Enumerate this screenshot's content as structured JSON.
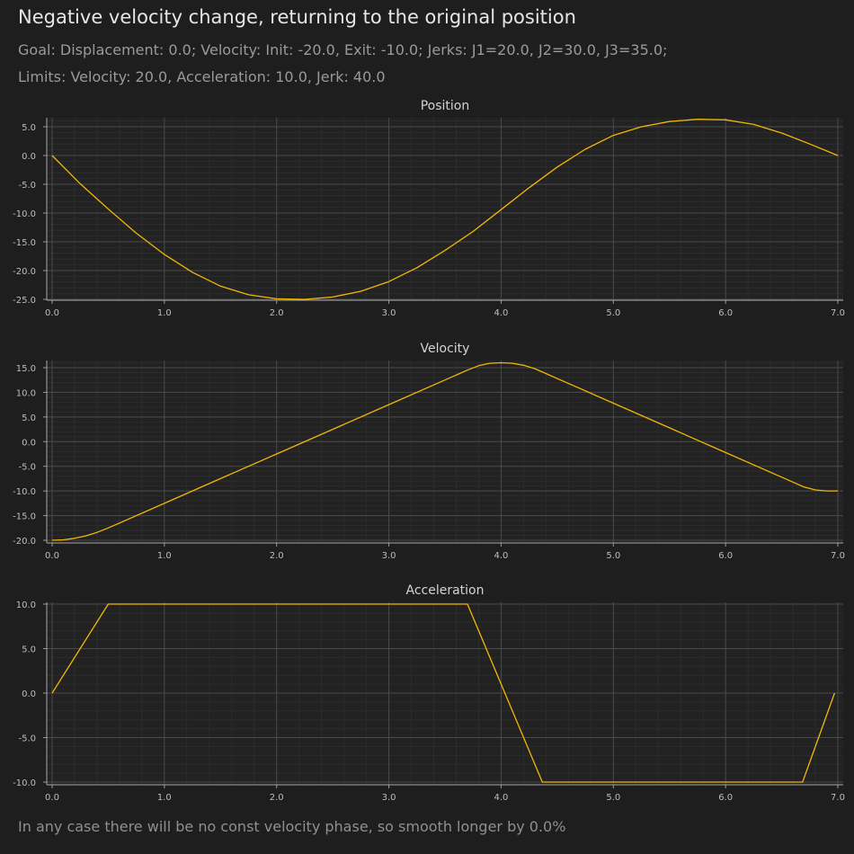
{
  "title": "Negative velocity change, returning to the original position",
  "subtitle_line1": "Goal: Displacement: 0.0; Velocity: Init: -20.0, Exit: -10.0; Jerks: J1=20.0, J2=30.0, J3=35.0;",
  "subtitle_line2": "Limits: Velocity: 20.0, Acceleration: 10.0, Jerk: 40.0",
  "footer": "In any case there will be no const velocity phase, so smooth longer by 0.0%",
  "colors": {
    "background": "#1e1e1e",
    "line": "#f2b705",
    "grid_major": "#4a4a4a",
    "grid_minor": "#2c2c2c"
  },
  "chart_data": [
    {
      "type": "line",
      "title": "Position",
      "xlim": [
        0,
        7
      ],
      "ylim": [
        -25,
        5
      ],
      "x_ticks": [
        "0.0",
        "1.0",
        "2.0",
        "3.0",
        "4.0",
        "5.0",
        "6.0",
        "7.0"
      ],
      "x_tick_values": [
        0,
        1,
        2,
        3,
        4,
        5,
        6,
        7
      ],
      "y_ticks": [
        "5.0",
        "0.0",
        "-5.0",
        "-10.0",
        "-15.0",
        "-20.0",
        "-25.0"
      ],
      "y_tick_values": [
        5,
        0,
        -5,
        -10,
        -15,
        -20,
        -25
      ],
      "x": [
        0,
        0.25,
        0.5,
        0.75,
        1.0,
        1.25,
        1.5,
        1.75,
        2.0,
        2.25,
        2.5,
        2.75,
        3.0,
        3.25,
        3.5,
        3.75,
        4.0,
        4.25,
        4.5,
        4.75,
        5.0,
        5.25,
        5.5,
        5.75,
        6.0,
        6.25,
        6.5,
        6.75,
        7.0
      ],
      "y": [
        0.0,
        -4.9,
        -9.3,
        -13.5,
        -17.2,
        -20.3,
        -22.7,
        -24.2,
        -24.9,
        -25.0,
        -24.6,
        -23.6,
        -21.9,
        -19.5,
        -16.5,
        -13.2,
        -9.4,
        -5.6,
        -2.0,
        1.1,
        3.5,
        5.0,
        5.9,
        6.3,
        6.2,
        5.4,
        3.9,
        2.0,
        0.0
      ]
    },
    {
      "type": "line",
      "title": "Velocity",
      "xlim": [
        0,
        7
      ],
      "ylim": [
        -20,
        16
      ],
      "x_ticks": [
        "0.0",
        "1.0",
        "2.0",
        "3.0",
        "4.0",
        "5.0",
        "6.0",
        "7.0"
      ],
      "x_tick_values": [
        0,
        1,
        2,
        3,
        4,
        5,
        6,
        7
      ],
      "y_ticks": [
        "15.0",
        "10.0",
        "5.0",
        "0.0",
        "-5.0",
        "-10.0",
        "-15.0",
        "-20.0"
      ],
      "y_tick_values": [
        15,
        10,
        5,
        0,
        -5,
        -10,
        -15,
        -20
      ],
      "x": [
        0,
        0.1,
        0.2,
        0.3,
        0.4,
        0.5,
        1.0,
        1.5,
        2.0,
        2.5,
        3.0,
        3.5,
        3.7,
        3.8,
        3.9,
        4.0,
        4.1,
        4.2,
        4.3,
        4.36,
        5.0,
        5.5,
        6.0,
        6.5,
        6.7,
        6.8,
        6.9,
        7.0
      ],
      "y": [
        -20.0,
        -19.9,
        -19.6,
        -19.1,
        -18.4,
        -17.5,
        -12.5,
        -7.5,
        -2.5,
        2.5,
        7.5,
        12.5,
        14.5,
        15.4,
        15.9,
        16.0,
        15.9,
        15.5,
        14.8,
        14.2,
        7.8,
        2.8,
        -2.2,
        -7.2,
        -9.2,
        -9.8,
        -10.0,
        -10.0
      ]
    },
    {
      "type": "line",
      "title": "Acceleration",
      "xlim": [
        0,
        7
      ],
      "ylim": [
        -10,
        10
      ],
      "x_ticks": [
        "0.0",
        "1.0",
        "2.0",
        "3.0",
        "4.0",
        "5.0",
        "6.0",
        "7.0"
      ],
      "x_tick_values": [
        0,
        1,
        2,
        3,
        4,
        5,
        6,
        7
      ],
      "y_ticks": [
        "10.0",
        "5.0",
        "0.0",
        "-5.0",
        "-10.0"
      ],
      "y_tick_values": [
        10,
        5,
        0,
        -5,
        -10
      ],
      "x": [
        0,
        0.5,
        3.7,
        4.367,
        6.686,
        6.971
      ],
      "y": [
        0,
        10,
        10,
        -10,
        -10,
        0
      ]
    }
  ]
}
